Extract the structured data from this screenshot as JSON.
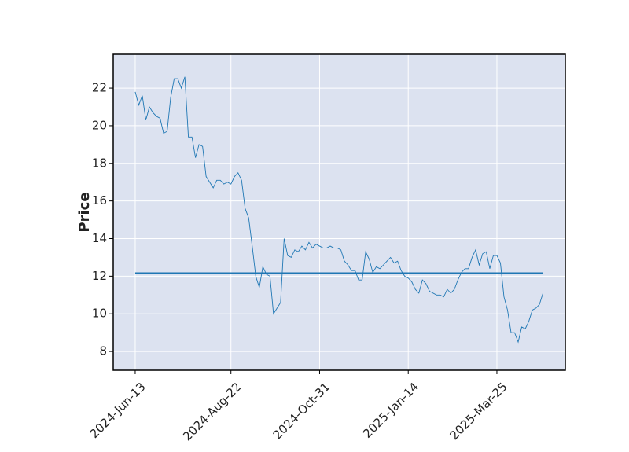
{
  "chart_data": {
    "type": "line",
    "ylabel": "Price",
    "values": [
      21.8,
      21.1,
      21.6,
      20.3,
      21.0,
      20.7,
      20.5,
      20.4,
      19.6,
      19.7,
      21.5,
      22.5,
      22.5,
      22.0,
      22.6,
      19.4,
      19.4,
      18.3,
      19.0,
      18.9,
      17.3,
      17.0,
      16.7,
      17.1,
      17.1,
      16.9,
      17.0,
      16.9,
      17.3,
      17.5,
      17.1,
      15.6,
      15.1,
      13.6,
      12.0,
      11.4,
      12.5,
      12.1,
      12.0,
      10.0,
      10.3,
      10.6,
      14.0,
      13.1,
      13.0,
      13.4,
      13.3,
      13.6,
      13.4,
      13.8,
      13.5,
      13.7,
      13.6,
      13.5,
      13.5,
      13.6,
      13.5,
      13.5,
      13.4,
      12.8,
      12.6,
      12.3,
      12.3,
      11.8,
      11.8,
      13.3,
      12.9,
      12.2,
      12.5,
      12.4,
      12.6,
      12.8,
      13.0,
      12.7,
      12.8,
      12.3,
      12.0,
      11.9,
      11.7,
      11.3,
      11.1,
      11.8,
      11.6,
      11.2,
      11.1,
      11.0,
      11.0,
      10.9,
      11.3,
      11.1,
      11.3,
      11.8,
      12.2,
      12.4,
      12.4,
      13.0,
      13.4,
      12.6,
      13.2,
      13.3,
      12.4,
      13.1,
      13.1,
      12.7,
      10.9,
      10.2,
      9.0,
      9.0,
      8.5,
      9.3,
      9.2,
      9.6,
      10.2,
      10.3,
      10.5,
      11.1
    ],
    "color": "#1f77b4",
    "hline": {
      "value": 12.15,
      "color": "#1f77b4"
    },
    "xlim": [
      -6.2,
      121.3
    ],
    "xticks": [
      {
        "value": 0,
        "label": "2024-Jun-13"
      },
      {
        "value": 27,
        "label": "2024-Aug-22"
      },
      {
        "value": 52,
        "label": "2024-Oct-31"
      },
      {
        "value": 77,
        "label": "2025-Jan-14"
      },
      {
        "value": 102,
        "label": "2025-Mar-25"
      }
    ],
    "ylim": [
      7.0,
      23.8
    ],
    "yticks": [
      8,
      10,
      12,
      14,
      16,
      18,
      20,
      22
    ],
    "grid": true,
    "background": "#dce2f0"
  }
}
